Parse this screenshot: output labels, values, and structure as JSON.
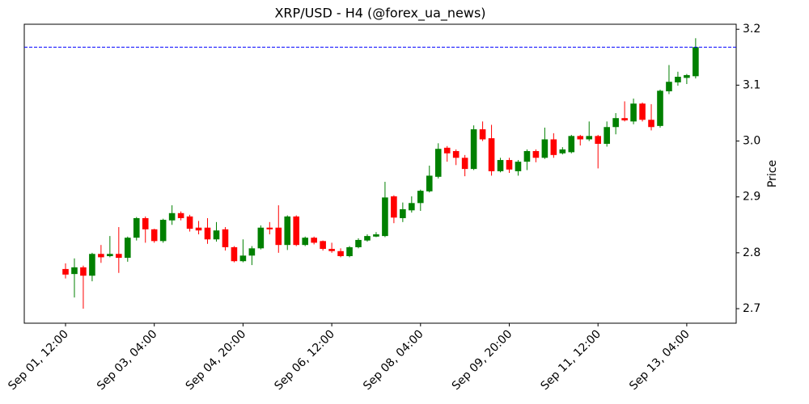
{
  "chart_data": {
    "type": "candlestick",
    "title": "XRP/USD - H4 (@forex_ua_news)",
    "y_label": "Price",
    "categories": [
      "Sep 01, 12:00",
      null,
      null,
      null,
      null,
      null,
      null,
      null,
      null,
      null,
      "Sep 03, 04:00",
      null,
      null,
      null,
      null,
      null,
      null,
      null,
      null,
      null,
      "Sep 04, 20:00",
      null,
      null,
      null,
      null,
      null,
      null,
      null,
      null,
      null,
      "Sep 06, 12:00",
      null,
      null,
      null,
      null,
      null,
      null,
      null,
      null,
      null,
      "Sep 08, 04:00",
      null,
      null,
      null,
      null,
      null,
      null,
      null,
      null,
      null,
      "Sep 09, 20:00",
      null,
      null,
      null,
      null,
      null,
      null,
      null,
      null,
      null,
      "Sep 11, 12:00",
      null,
      null,
      null,
      null,
      null,
      null,
      null,
      null,
      null,
      "Sep 13, 04:00",
      null
    ],
    "open": [
      2.771,
      2.762,
      2.774,
      2.759,
      2.798,
      2.794,
      2.798,
      2.791,
      2.827,
      2.862,
      2.842,
      2.821,
      2.858,
      2.871,
      2.865,
      2.845,
      2.845,
      2.824,
      2.842,
      2.81,
      2.785,
      2.795,
      2.808,
      2.845,
      2.845,
      2.814,
      2.865,
      2.814,
      2.827,
      2.821,
      2.807,
      2.803,
      2.794,
      2.81,
      2.822,
      2.829,
      2.83,
      2.901,
      2.862,
      2.876,
      2.889,
      2.91,
      2.936,
      2.988,
      2.982,
      2.97,
      2.95,
      3.021,
      3.005,
      2.946,
      2.966,
      2.946,
      2.963,
      2.982,
      2.97,
      3.003,
      2.978,
      2.98,
      3.009,
      3.003,
      3.009,
      2.995,
      3.025,
      3.041,
      3.035,
      3.067,
      3.038,
      3.027,
      3.089,
      3.105,
      3.113,
      3.116
    ],
    "high": [
      2.781,
      2.79,
      2.777,
      2.8,
      2.814,
      2.83,
      2.846,
      2.829,
      2.864,
      2.865,
      2.843,
      2.861,
      2.885,
      2.874,
      2.868,
      2.857,
      2.862,
      2.855,
      2.846,
      2.812,
      2.824,
      2.812,
      2.849,
      2.855,
      2.885,
      2.867,
      2.867,
      2.829,
      2.829,
      2.822,
      2.818,
      2.808,
      2.812,
      2.826,
      2.833,
      2.837,
      2.927,
      2.903,
      2.89,
      2.901,
      2.913,
      2.956,
      2.996,
      2.991,
      2.985,
      2.975,
      3.028,
      3.035,
      3.029,
      2.97,
      2.97,
      2.966,
      2.985,
      2.985,
      3.024,
      3.014,
      2.989,
      3.011,
      3.011,
      3.035,
      3.011,
      3.035,
      3.05,
      3.071,
      3.076,
      3.069,
      3.066,
      3.092,
      3.136,
      3.124,
      3.12,
      3.184
    ],
    "low": [
      2.754,
      2.72,
      2.7,
      2.749,
      2.782,
      2.792,
      2.764,
      2.784,
      2.822,
      2.818,
      2.818,
      2.818,
      2.85,
      2.858,
      2.838,
      2.833,
      2.816,
      2.82,
      2.804,
      2.783,
      2.783,
      2.778,
      2.806,
      2.833,
      2.8,
      2.805,
      2.812,
      2.812,
      2.815,
      2.804,
      2.8,
      2.792,
      2.792,
      2.808,
      2.82,
      2.828,
      2.828,
      2.853,
      2.855,
      2.872,
      2.875,
      2.908,
      2.933,
      2.963,
      2.957,
      2.937,
      2.948,
      3.0,
      2.938,
      2.944,
      2.943,
      2.938,
      2.948,
      2.962,
      2.968,
      2.97,
      2.976,
      2.978,
      2.992,
      3.0,
      2.951,
      2.99,
      3.012,
      3.035,
      3.03,
      3.035,
      3.019,
      3.024,
      3.084,
      3.099,
      3.102,
      3.112
    ],
    "close": [
      2.761,
      2.774,
      2.759,
      2.798,
      2.792,
      2.798,
      2.791,
      2.827,
      2.862,
      2.842,
      2.821,
      2.859,
      2.871,
      2.862,
      2.843,
      2.84,
      2.824,
      2.84,
      2.81,
      2.785,
      2.795,
      2.808,
      2.845,
      2.842,
      2.814,
      2.865,
      2.814,
      2.827,
      2.818,
      2.807,
      2.803,
      2.794,
      2.81,
      2.823,
      2.83,
      2.833,
      2.899,
      2.863,
      2.878,
      2.889,
      2.911,
      2.938,
      2.986,
      2.978,
      2.97,
      2.95,
      3.021,
      3.003,
      2.946,
      2.966,
      2.949,
      2.963,
      2.982,
      2.97,
      3.003,
      2.975,
      2.985,
      3.009,
      3.003,
      3.009,
      2.995,
      3.025,
      3.041,
      3.037,
      3.067,
      3.038,
      3.025,
      3.09,
      3.106,
      3.115,
      3.118,
      3.168
    ],
    "up_color": "green",
    "down_color": "red",
    "hline": {
      "value": 3.168,
      "color": "blue"
    },
    "ylim": [
      2.674,
      3.209
    ],
    "yticks": [
      2.7,
      2.8,
      2.9,
      {
        "value": 3,
        "label": "3.0"
      },
      3.1,
      3.2
    ]
  }
}
